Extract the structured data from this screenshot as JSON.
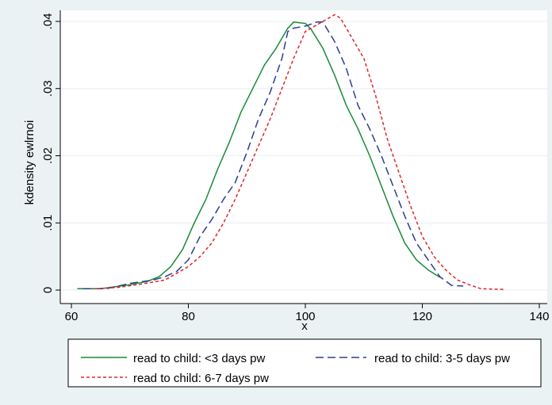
{
  "chart_data": {
    "type": "line",
    "xlabel": "x",
    "ylabel": "kdensity ewlrnoi",
    "xlim": [
      60,
      140
    ],
    "ylim": [
      0,
      0.04
    ],
    "x_ticks": [
      {
        "value": 60,
        "label": "60"
      },
      {
        "value": 80,
        "label": "80"
      },
      {
        "value": 100,
        "label": "100"
      },
      {
        "value": 120,
        "label": "120"
      },
      {
        "value": 140,
        "label": "140"
      }
    ],
    "y_ticks": [
      {
        "value": 0,
        "label": "0"
      },
      {
        "value": 0.01,
        "label": ".01"
      },
      {
        "value": 0.02,
        "label": ".02"
      },
      {
        "value": 0.03,
        "label": ".03"
      },
      {
        "value": 0.04,
        "label": ".04"
      }
    ],
    "grid": "horizontal",
    "legend_position": "bottom",
    "series": [
      {
        "name": "read to child: <3 days pw",
        "color": "#1a8a3a",
        "dash": "solid",
        "points": [
          [
            61,
            0.0002
          ],
          [
            65,
            0.0002
          ],
          [
            70,
            0.0008
          ],
          [
            73,
            0.0013
          ],
          [
            75,
            0.002
          ],
          [
            77,
            0.0035
          ],
          [
            79,
            0.006
          ],
          [
            81,
            0.01
          ],
          [
            83,
            0.0135
          ],
          [
            85,
            0.018
          ],
          [
            87,
            0.022
          ],
          [
            89,
            0.0265
          ],
          [
            91,
            0.03
          ],
          [
            93,
            0.0335
          ],
          [
            95,
            0.036
          ],
          [
            97,
            0.039
          ],
          [
            98,
            0.0399
          ],
          [
            99,
            0.0398
          ],
          [
            100,
            0.0397
          ],
          [
            101,
            0.0388
          ],
          [
            103,
            0.036
          ],
          [
            105,
            0.032
          ],
          [
            107,
            0.0275
          ],
          [
            109,
            0.024
          ],
          [
            111,
            0.02
          ],
          [
            113,
            0.0155
          ],
          [
            115,
            0.011
          ],
          [
            117,
            0.007
          ],
          [
            119,
            0.0045
          ],
          [
            121,
            0.003
          ],
          [
            123,
            0.0019
          ]
        ]
      },
      {
        "name": "read to child: 3-5 days pw",
        "color": "#2b3d8f",
        "dash": "long-dash",
        "points": [
          [
            62,
            0.0002
          ],
          [
            66,
            0.0002
          ],
          [
            70,
            0.001
          ],
          [
            74,
            0.0015
          ],
          [
            76,
            0.002
          ],
          [
            78,
            0.0028
          ],
          [
            80,
            0.0045
          ],
          [
            82,
            0.008
          ],
          [
            84,
            0.0105
          ],
          [
            86,
            0.0135
          ],
          [
            88,
            0.016
          ],
          [
            90,
            0.0205
          ],
          [
            92,
            0.0255
          ],
          [
            94,
            0.0295
          ],
          [
            96,
            0.0345
          ],
          [
            97,
            0.0385
          ],
          [
            98,
            0.039
          ],
          [
            100,
            0.0393
          ],
          [
            102,
            0.0399
          ],
          [
            103,
            0.0399
          ],
          [
            105,
            0.037
          ],
          [
            107,
            0.033
          ],
          [
            109,
            0.0275
          ],
          [
            111,
            0.024
          ],
          [
            113,
            0.02
          ],
          [
            115,
            0.0155
          ],
          [
            117,
            0.011
          ],
          [
            119,
            0.007
          ],
          [
            121,
            0.0045
          ],
          [
            123,
            0.002
          ],
          [
            125,
            0.0007
          ],
          [
            127,
            0.0006
          ]
        ]
      },
      {
        "name": "read to child: 6-7 days pw",
        "color": "#e0242a",
        "dash": "short-dash",
        "points": [
          [
            64,
            0.0002
          ],
          [
            68,
            0.0004
          ],
          [
            72,
            0.0009
          ],
          [
            76,
            0.0015
          ],
          [
            80,
            0.0035
          ],
          [
            82,
            0.005
          ],
          [
            84,
            0.007
          ],
          [
            86,
            0.01
          ],
          [
            88,
            0.0135
          ],
          [
            90,
            0.0175
          ],
          [
            92,
            0.0215
          ],
          [
            94,
            0.0255
          ],
          [
            96,
            0.03
          ],
          [
            98,
            0.0345
          ],
          [
            100,
            0.0385
          ],
          [
            102,
            0.0395
          ],
          [
            104,
            0.0405
          ],
          [
            105,
            0.041
          ],
          [
            106,
            0.0405
          ],
          [
            108,
            0.0375
          ],
          [
            110,
            0.0345
          ],
          [
            112,
            0.029
          ],
          [
            114,
            0.0225
          ],
          [
            116,
            0.0175
          ],
          [
            118,
            0.0125
          ],
          [
            120,
            0.008
          ],
          [
            122,
            0.005
          ],
          [
            124,
            0.003
          ],
          [
            126,
            0.0015
          ],
          [
            128,
            0.0008
          ],
          [
            130,
            0.0002
          ],
          [
            134,
            0.0001
          ]
        ]
      }
    ]
  }
}
